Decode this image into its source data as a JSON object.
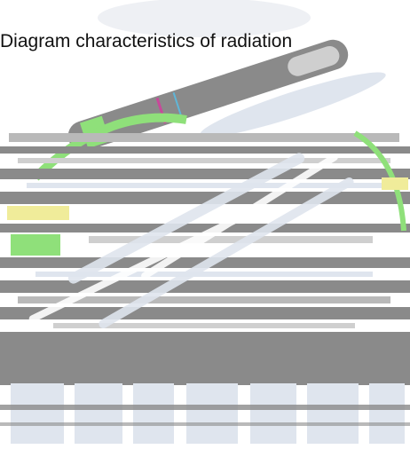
{
  "title": "Diagram characteristics of radiation",
  "palette": {
    "background": "#ffffff",
    "gray_band": "#8a8a8a",
    "light_gray": "#cfcfcf",
    "pale_blue": "#dfe5ee",
    "green": "#8fe07a",
    "yellow": "#f0ec9a",
    "magenta": "#c8489a",
    "cyan": "#5fb6d8"
  },
  "artwork": {
    "description_icon": "glitched-radiation-diagram-graphic",
    "logo": "distorted-wordmark-logo"
  }
}
